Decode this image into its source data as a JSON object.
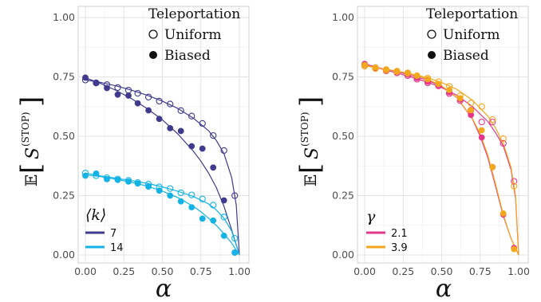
{
  "chart_data": [
    {
      "type": "scatter",
      "xlabel": "α",
      "ylabel": "𝔼[S(STOP)]",
      "ylabel_parts": {
        "prefix": "𝔼",
        "symbol": "S",
        "superscript": "(STOP)"
      },
      "xlim": [
        0,
        1
      ],
      "ylim": [
        0,
        1
      ],
      "x_ticks": [
        "0.00",
        "0.25",
        "0.50",
        "0.75",
        "1.00"
      ],
      "y_ticks": [
        "0.00",
        "0.25",
        "0.50",
        "0.75",
        "1.00"
      ],
      "grid": true,
      "marker_legend": {
        "title": "Teleportation",
        "items": [
          {
            "label": "Uniform",
            "marker": "open-circle"
          },
          {
            "label": "Biased",
            "marker": "filled-circle"
          }
        ],
        "position": "top-right"
      },
      "series_legend": {
        "title": "⟨k⟩",
        "position": "bottom-left",
        "items": [
          {
            "label": "7",
            "color": "#3f3a8c"
          },
          {
            "label": "14",
            "color": "#14b3e6"
          }
        ]
      },
      "series": [
        {
          "name": "7",
          "color": "#3f3a8c",
          "marker": "open-circle",
          "x": [
            0,
            0.07,
            0.14,
            0.21,
            0.28,
            0.34,
            0.41,
            0.48,
            0.55,
            0.62,
            0.69,
            0.76,
            0.83,
            0.9,
            0.97
          ],
          "y": [
            0.737,
            0.724,
            0.717,
            0.705,
            0.694,
            0.681,
            0.665,
            0.648,
            0.636,
            0.608,
            0.585,
            0.554,
            0.503,
            0.44,
            0.25
          ]
        },
        {
          "name": "7",
          "color": "#3f3a8c",
          "marker": "filled-circle",
          "x": [
            0,
            0.07,
            0.14,
            0.21,
            0.28,
            0.34,
            0.41,
            0.48,
            0.55,
            0.62,
            0.69,
            0.76,
            0.83,
            0.9,
            0.97
          ],
          "y": [
            0.747,
            0.726,
            0.703,
            0.675,
            0.671,
            0.639,
            0.609,
            0.573,
            0.534,
            0.522,
            0.458,
            0.448,
            0.368,
            0.23,
            0.01
          ]
        },
        {
          "name": "14",
          "color": "#14b3e6",
          "marker": "open-circle",
          "x": [
            0,
            0.07,
            0.14,
            0.21,
            0.28,
            0.34,
            0.41,
            0.48,
            0.55,
            0.62,
            0.69,
            0.76,
            0.83,
            0.9,
            0.97
          ],
          "y": [
            0.345,
            0.334,
            0.325,
            0.32,
            0.314,
            0.305,
            0.298,
            0.287,
            0.28,
            0.262,
            0.253,
            0.236,
            0.21,
            0.16,
            0.07
          ]
        },
        {
          "name": "14",
          "color": "#14b3e6",
          "marker": "filled-circle",
          "x": [
            0,
            0.07,
            0.14,
            0.21,
            0.28,
            0.34,
            0.41,
            0.48,
            0.55,
            0.62,
            0.69,
            0.76,
            0.83,
            0.9,
            0.97
          ],
          "y": [
            0.334,
            0.343,
            0.319,
            0.316,
            0.309,
            0.301,
            0.288,
            0.271,
            0.25,
            0.226,
            0.201,
            0.153,
            0.145,
            0.081,
            0.01
          ]
        }
      ],
      "curves": [
        {
          "color": "#3f3a8c",
          "x": [
            0,
            0.1,
            0.2,
            0.3,
            0.4,
            0.5,
            0.6,
            0.7,
            0.8,
            0.85,
            0.9,
            0.95,
            0.98,
            1.0
          ],
          "y": [
            0.737,
            0.727,
            0.712,
            0.694,
            0.673,
            0.648,
            0.617,
            0.577,
            0.523,
            0.483,
            0.427,
            0.325,
            0.21,
            0.0
          ]
        },
        {
          "color": "#3f3a8c",
          "x": [
            0,
            0.1,
            0.2,
            0.3,
            0.4,
            0.5,
            0.6,
            0.7,
            0.75,
            0.8,
            0.85,
            0.9,
            0.95,
            1.0
          ],
          "y": [
            0.747,
            0.722,
            0.693,
            0.658,
            0.617,
            0.569,
            0.51,
            0.438,
            0.395,
            0.345,
            0.285,
            0.205,
            0.105,
            0.0
          ]
        },
        {
          "color": "#14b3e6",
          "x": [
            0,
            0.1,
            0.2,
            0.3,
            0.4,
            0.5,
            0.6,
            0.7,
            0.8,
            0.85,
            0.9,
            0.95,
            1.0
          ],
          "y": [
            0.345,
            0.333,
            0.323,
            0.313,
            0.302,
            0.287,
            0.268,
            0.247,
            0.215,
            0.19,
            0.155,
            0.1,
            0.0
          ]
        },
        {
          "color": "#14b3e6",
          "x": [
            0,
            0.1,
            0.2,
            0.3,
            0.4,
            0.5,
            0.6,
            0.7,
            0.75,
            0.8,
            0.85,
            0.9,
            0.95,
            1.0
          ],
          "y": [
            0.338,
            0.33,
            0.319,
            0.306,
            0.29,
            0.269,
            0.242,
            0.205,
            0.182,
            0.155,
            0.125,
            0.09,
            0.05,
            0.0
          ]
        }
      ]
    },
    {
      "type": "scatter",
      "xlabel": "α",
      "ylabel": "𝔼[S(STOP)]",
      "ylabel_parts": {
        "prefix": "𝔼",
        "symbol": "S",
        "superscript": "(STOP)"
      },
      "xlim": [
        0,
        1
      ],
      "ylim": [
        0,
        1
      ],
      "x_ticks": [
        "0.00",
        "0.25",
        "0.50",
        "0.75",
        "1.00"
      ],
      "y_ticks": [
        "0.00",
        "0.25",
        "0.50",
        "0.75",
        "1.00"
      ],
      "grid": true,
      "marker_legend": {
        "title": "Teleportation",
        "items": [
          {
            "label": "Uniform",
            "marker": "open-circle"
          },
          {
            "label": "Biased",
            "marker": "filled-circle"
          }
        ],
        "position": "top-right"
      },
      "series_legend": {
        "title": "γ",
        "position": "bottom-left",
        "items": [
          {
            "label": "2.1",
            "color": "#e6378a"
          },
          {
            "label": "3.9",
            "color": "#f2a81d"
          }
        ]
      },
      "series": [
        {
          "name": "2.1",
          "color": "#e6378a",
          "marker": "open-circle",
          "x": [
            0,
            0.07,
            0.14,
            0.21,
            0.28,
            0.34,
            0.41,
            0.48,
            0.55,
            0.62,
            0.69,
            0.76,
            0.83,
            0.9,
            0.97
          ],
          "y": [
            0.8,
            0.787,
            0.775,
            0.767,
            0.755,
            0.74,
            0.725,
            0.712,
            0.68,
            0.65,
            0.61,
            0.56,
            0.56,
            0.47,
            0.31
          ]
        },
        {
          "name": "2.1",
          "color": "#e6378a",
          "marker": "filled-circle",
          "x": [
            0,
            0.07,
            0.14,
            0.21,
            0.28,
            0.34,
            0.41,
            0.48,
            0.55,
            0.62,
            0.69,
            0.76,
            0.83,
            0.9,
            0.97
          ],
          "y": [
            0.805,
            0.79,
            0.78,
            0.77,
            0.76,
            0.745,
            0.73,
            0.715,
            0.685,
            0.655,
            0.59,
            0.495,
            0.37,
            0.17,
            0.03
          ]
        },
        {
          "name": "3.9",
          "color": "#f2a81d",
          "marker": "open-circle",
          "x": [
            0,
            0.07,
            0.14,
            0.21,
            0.28,
            0.34,
            0.41,
            0.48,
            0.55,
            0.62,
            0.69,
            0.76,
            0.83,
            0.9,
            0.97
          ],
          "y": [
            0.795,
            0.785,
            0.778,
            0.772,
            0.765,
            0.755,
            0.745,
            0.73,
            0.71,
            0.67,
            0.64,
            0.625,
            0.57,
            0.49,
            0.29
          ]
        },
        {
          "name": "3.9",
          "color": "#f2a81d",
          "marker": "filled-circle",
          "x": [
            0,
            0.07,
            0.14,
            0.21,
            0.28,
            0.34,
            0.41,
            0.48,
            0.55,
            0.62,
            0.69,
            0.76,
            0.83,
            0.9,
            0.97
          ],
          "y": [
            0.8,
            0.79,
            0.782,
            0.775,
            0.768,
            0.755,
            0.74,
            0.72,
            0.695,
            0.66,
            0.61,
            0.525,
            0.37,
            0.175,
            0.025
          ]
        }
      ],
      "curves": [
        {
          "color": "#e6378a",
          "x": [
            0,
            0.1,
            0.2,
            0.3,
            0.4,
            0.5,
            0.6,
            0.7,
            0.8,
            0.85,
            0.9,
            0.95,
            0.98,
            1.0
          ],
          "y": [
            0.802,
            0.785,
            0.768,
            0.75,
            0.73,
            0.705,
            0.672,
            0.625,
            0.562,
            0.515,
            0.46,
            0.36,
            0.24,
            0.0
          ]
        },
        {
          "color": "#f2a81d",
          "x": [
            0,
            0.1,
            0.2,
            0.3,
            0.4,
            0.5,
            0.6,
            0.7,
            0.8,
            0.85,
            0.9,
            0.95,
            0.98,
            1.0
          ],
          "y": [
            0.797,
            0.786,
            0.775,
            0.763,
            0.748,
            0.727,
            0.697,
            0.652,
            0.585,
            0.535,
            0.47,
            0.37,
            0.25,
            0.0
          ]
        },
        {
          "color": "#e6378a",
          "x": [
            0,
            0.1,
            0.2,
            0.3,
            0.4,
            0.5,
            0.6,
            0.7,
            0.75,
            0.8,
            0.85,
            0.9,
            0.95,
            1.0
          ],
          "y": [
            0.805,
            0.787,
            0.774,
            0.757,
            0.738,
            0.71,
            0.662,
            0.572,
            0.5,
            0.41,
            0.29,
            0.165,
            0.07,
            0.0
          ]
        },
        {
          "color": "#f2a81d",
          "x": [
            0,
            0.1,
            0.2,
            0.3,
            0.4,
            0.5,
            0.6,
            0.7,
            0.75,
            0.8,
            0.85,
            0.9,
            0.95,
            1.0
          ],
          "y": [
            0.8,
            0.786,
            0.776,
            0.762,
            0.743,
            0.712,
            0.663,
            0.574,
            0.51,
            0.42,
            0.3,
            0.17,
            0.07,
            0.0
          ]
        }
      ]
    }
  ]
}
